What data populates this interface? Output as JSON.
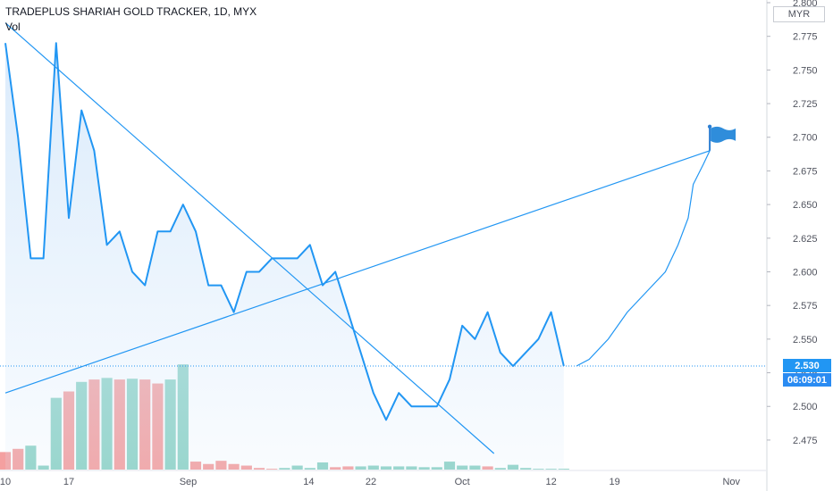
{
  "header": {
    "symbol_line": "TRADEPLUS SHARIAH GOLD TRACKER, 1D, MYX",
    "volume_label": "Vol",
    "currency_button": "MYR"
  },
  "price_badge": {
    "last_price": "2.530",
    "countdown": "06:09:01"
  },
  "colors": {
    "price_line": "#2196f3",
    "price_fill": "#d7e9fb",
    "trend_lines": "#2196f3",
    "volume_up": "#8fd3c6",
    "volume_down": "#f4a0a0",
    "badge_bg": "#2196f3",
    "countdown_bg": "#2a8bf2"
  },
  "icons": {
    "target_marker": "flag-icon"
  },
  "chart_data": {
    "type": "area",
    "title": "",
    "ylim": [
      2.465,
      2.8
    ],
    "y_ticks": [
      "2.800",
      "2.775",
      "2.750",
      "2.725",
      "2.700",
      "2.675",
      "2.650",
      "2.625",
      "2.600",
      "2.575",
      "2.550",
      "2.525",
      "2.500",
      "2.475"
    ],
    "x_ticks": [
      "10",
      "17",
      "Sep",
      "14",
      "22",
      "Oct",
      "12",
      "19",
      "Nov"
    ],
    "series": [
      {
        "values": [
          2.77,
          2.7,
          2.61,
          2.61,
          2.77,
          2.64,
          2.72,
          2.69,
          2.62,
          2.63,
          2.6,
          2.59,
          2.63,
          2.63,
          2.65,
          2.63,
          2.59,
          2.59,
          2.57,
          2.6,
          2.6,
          2.61,
          2.61,
          2.61,
          2.62,
          2.59,
          2.6,
          2.57,
          2.54,
          2.51,
          2.49,
          2.51,
          2.5,
          2.5,
          2.5,
          2.52,
          2.56,
          2.55,
          2.57,
          2.54,
          2.53,
          2.54,
          2.55,
          2.57,
          2.53
        ]
      }
    ],
    "volume": {
      "values": [
        22,
        26,
        30,
        5,
        90,
        98,
        110,
        113,
        115,
        113,
        114,
        113,
        108,
        113,
        132,
        10,
        7,
        11,
        7,
        5,
        2,
        1,
        2,
        5,
        2,
        9,
        3,
        4,
        4,
        5,
        4,
        4,
        4,
        3,
        3,
        10,
        5,
        5,
        4,
        2,
        6,
        2,
        1,
        1,
        1
      ],
      "direction": [
        "down",
        "down",
        "up",
        "up",
        "up",
        "down",
        "up",
        "down",
        "up",
        "down",
        "up",
        "down",
        "down",
        "up",
        "up",
        "down",
        "down",
        "down",
        "down",
        "down",
        "down",
        "down",
        "up",
        "up",
        "up",
        "up",
        "down",
        "down",
        "up",
        "up",
        "up",
        "up",
        "up",
        "up",
        "up",
        "up",
        "up",
        "up",
        "down",
        "up",
        "up",
        "up",
        "up",
        "up",
        "up"
      ]
    },
    "trend_lines": [
      {
        "from": [
          0,
          2.785
        ],
        "to": [
          38.5,
          2.465
        ]
      },
      {
        "from": [
          0,
          2.51
        ],
        "to": [
          55.5,
          2.69
        ]
      }
    ],
    "projection_path": {
      "from": [
        45,
        2.53
      ],
      "to": [
        55.5,
        2.69
      ],
      "points": [
        [
          45,
          2.53
        ],
        [
          46,
          2.535
        ],
        [
          47.5,
          2.55
        ],
        [
          49,
          2.57
        ],
        [
          50.5,
          2.585
        ],
        [
          52,
          2.6
        ],
        [
          53,
          2.62
        ],
        [
          53.8,
          2.64
        ],
        [
          54.2,
          2.665
        ],
        [
          55,
          2.68
        ],
        [
          55.5,
          2.69
        ]
      ]
    },
    "grid": false,
    "legend": "top-left"
  }
}
